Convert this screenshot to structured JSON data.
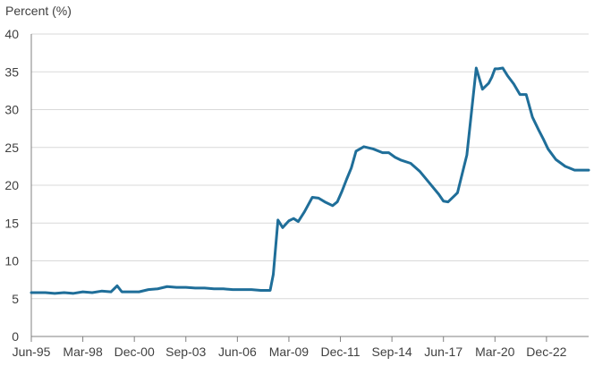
{
  "chart_data": {
    "type": "line",
    "title": "",
    "xlabel": "",
    "ylabel": "Percent (%)",
    "ylim": [
      0,
      40
    ],
    "yticks": [
      0,
      5,
      10,
      15,
      20,
      25,
      30,
      35,
      40
    ],
    "xtick_labels": [
      "Jun-95",
      "Mar-98",
      "Dec-00",
      "Sep-03",
      "Jun-06",
      "Mar-09",
      "Dec-11",
      "Sep-14",
      "Jun-17",
      "Mar-20",
      "Dec-22"
    ],
    "xlim": [
      "1995-06",
      "2025-03"
    ],
    "grid": "horizontal",
    "legend": "none",
    "line_color": "#1f6e99",
    "series": [
      {
        "x": [
          "1995-06",
          "1996-03",
          "1996-09",
          "1997-03",
          "1997-09",
          "1998-03",
          "1998-09",
          "1999-03",
          "1999-09",
          "2000-01",
          "2000-04",
          "2000-09",
          "2001-03",
          "2001-09",
          "2002-03",
          "2002-09",
          "2003-03",
          "2003-09",
          "2004-03",
          "2004-09",
          "2005-03",
          "2005-09",
          "2006-03",
          "2006-09",
          "2007-03",
          "2007-09",
          "2008-03",
          "2008-05",
          "2008-08",
          "2008-11",
          "2009-03",
          "2009-06",
          "2009-09",
          "2010-01",
          "2010-06",
          "2010-10",
          "2011-02",
          "2011-07",
          "2011-10",
          "2012-01",
          "2012-04",
          "2012-07",
          "2012-10",
          "2013-03",
          "2013-09",
          "2014-03",
          "2014-07",
          "2014-11",
          "2015-03",
          "2015-09",
          "2016-03",
          "2016-09",
          "2017-03",
          "2017-06",
          "2017-09",
          "2018-03",
          "2018-09",
          "2019-03",
          "2019-07",
          "2019-11",
          "2020-01",
          "2020-03",
          "2020-05",
          "2020-08",
          "2020-11",
          "2021-03",
          "2021-07",
          "2021-11",
          "2022-03",
          "2022-07",
          "2022-10",
          "2023-01",
          "2023-06",
          "2023-12",
          "2024-06",
          "2024-10",
          "2025-03"
        ],
        "values": [
          5.8,
          5.8,
          5.7,
          5.8,
          5.7,
          5.9,
          5.8,
          6.0,
          5.9,
          6.7,
          5.9,
          5.9,
          5.9,
          6.2,
          6.3,
          6.6,
          6.5,
          6.5,
          6.4,
          6.4,
          6.3,
          6.3,
          6.2,
          6.2,
          6.2,
          6.1,
          6.1,
          8.2,
          15.4,
          14.4,
          15.3,
          15.6,
          15.2,
          16.5,
          18.4,
          18.3,
          17.8,
          17.3,
          17.8,
          19.2,
          20.8,
          22.3,
          24.5,
          25.1,
          24.8,
          24.3,
          24.3,
          23.7,
          23.3,
          22.9,
          21.8,
          20.3,
          18.8,
          17.9,
          17.8,
          19.0,
          24.0,
          35.5,
          32.7,
          33.5,
          34.3,
          35.4,
          35.4,
          35.5,
          34.5,
          33.4,
          32.0,
          32.0,
          29.0,
          27.3,
          26.1,
          24.8,
          23.4,
          22.5,
          22.0,
          22.0,
          22.0
        ]
      }
    ]
  }
}
